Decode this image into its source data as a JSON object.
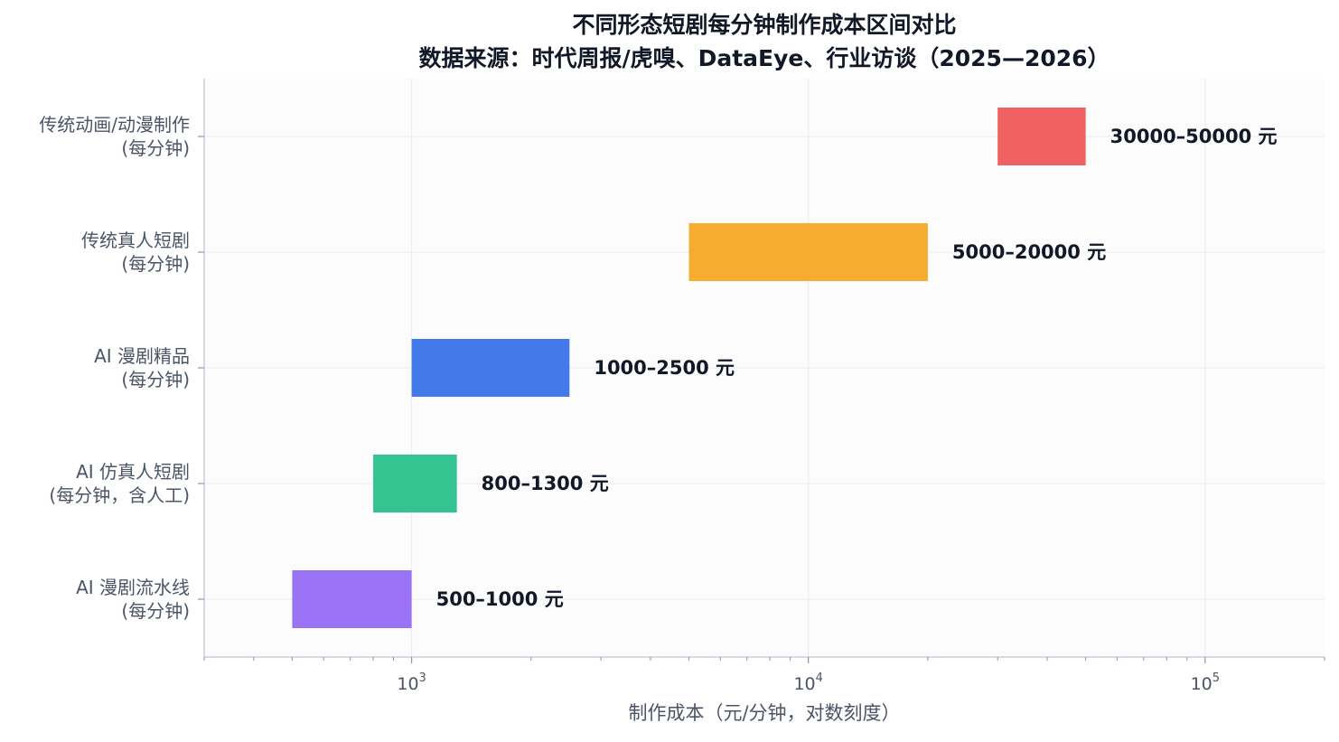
{
  "chart_data": {
    "type": "bar",
    "orientation": "horizontal",
    "title": [
      "不同形态短剧每分钟制作成本区间对比",
      "数据来源：时代周报/虎嗅、DataEye、行业访谈（2025—2026）"
    ],
    "xlabel": "制作成本（元/分钟，对数刻度）",
    "x_scale": "log",
    "xlim": [
      300,
      200000
    ],
    "x_ticks": [
      {
        "value": 1000,
        "base": "10",
        "exp": "3"
      },
      {
        "value": 10000,
        "base": "10",
        "exp": "4"
      },
      {
        "value": 100000,
        "base": "10",
        "exp": "5"
      }
    ],
    "grid": true,
    "categories": [
      {
        "lines": [
          "传统动画/动漫制作",
          "(每分钟)"
        ],
        "low": 30000,
        "high": 50000,
        "label": "30000–50000 元",
        "color": "#f06262"
      },
      {
        "lines": [
          "传统真人短剧",
          "(每分钟)"
        ],
        "low": 5000,
        "high": 20000,
        "label": "5000–20000 元",
        "color": "#f5ac31"
      },
      {
        "lines": [
          "AI 漫剧精品",
          "(每分钟)"
        ],
        "low": 1000,
        "high": 2500,
        "label": "1000–2500 元",
        "color": "#4479ea"
      },
      {
        "lines": [
          "AI 仿真人短剧",
          "(每分钟，含人工)"
        ],
        "low": 800,
        "high": 1300,
        "label": "800–1300 元",
        "color": "#34c491"
      },
      {
        "lines": [
          "AI 漫剧流水线",
          "(每分钟)"
        ],
        "low": 500,
        "high": 1000,
        "label": "500–1000 元",
        "color": "#9a73f5"
      }
    ]
  }
}
